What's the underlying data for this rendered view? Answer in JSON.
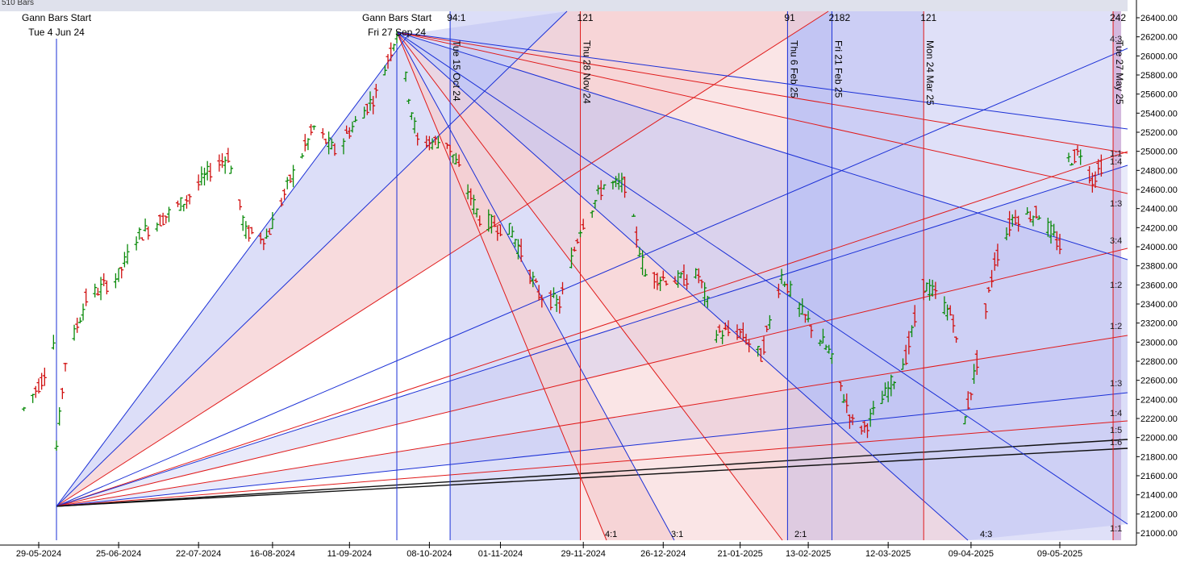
{
  "top_left_label": "510 Bars",
  "colors": {
    "background": "#ffffff",
    "up_bar": "#0a8a0a",
    "down_bar": "#d01010",
    "blue_line": "#1a2fd6",
    "red_line": "#e01a1a",
    "black_line": "#111111",
    "blue_zone": "#bfc2f2",
    "red_zone": "#f5cfd2",
    "axis_text": "#000000"
  },
  "chart_data": {
    "type": "bar",
    "subtype": "ohlc",
    "title": "",
    "xlabel": "",
    "ylabel": "",
    "ylim": [
      20900,
      26450
    ],
    "y_ticks": [
      "26400.00",
      "26200.00",
      "26000.00",
      "25800.00",
      "25600.00",
      "25400.00",
      "25200.00",
      "25000.00",
      "24800.00",
      "24600.00",
      "24400.00",
      "24200.00",
      "24000.00",
      "23800.00",
      "23600.00",
      "23400.00",
      "23200.00",
      "23000.00",
      "22800.00",
      "22600.00",
      "22400.00",
      "22200.00",
      "22000.00",
      "21800.00",
      "21600.00",
      "21400.00",
      "21200.00",
      "21000.00"
    ],
    "x_ticks": [
      "29-05-2024",
      "25-06-2024",
      "22-07-2024",
      "16-08-2024",
      "11-09-2024",
      "08-10-2024",
      "01-11-2024",
      "29-11-2024",
      "26-12-2024",
      "21-01-2025",
      "13-02-2025",
      "12-03-2025",
      "09-04-2025",
      "09-05-2025"
    ],
    "price_path": [
      [
        "2024-05-24",
        22300
      ],
      [
        "2024-05-30",
        22600
      ],
      [
        "2024-06-03",
        23000
      ],
      [
        "2024-06-04",
        21900
      ],
      [
        "2024-06-07",
        22800
      ],
      [
        "2024-06-14",
        23450
      ],
      [
        "2024-06-25",
        23700
      ],
      [
        "2024-07-01",
        24100
      ],
      [
        "2024-07-10",
        24300
      ],
      [
        "2024-07-18",
        24500
      ],
      [
        "2024-07-26",
        24800
      ],
      [
        "2024-08-01",
        24950
      ],
      [
        "2024-08-07",
        24150
      ],
      [
        "2024-08-14",
        24100
      ],
      [
        "2024-08-22",
        24700
      ],
      [
        "2024-08-30",
        25250
      ],
      [
        "2024-09-06",
        25000
      ],
      [
        "2024-09-13",
        25300
      ],
      [
        "2024-09-20",
        25600
      ],
      [
        "2024-09-27",
        26250
      ],
      [
        "2024-10-04",
        25100
      ],
      [
        "2024-10-14",
        25100
      ],
      [
        "2024-10-25",
        24300
      ],
      [
        "2024-11-05",
        24150
      ],
      [
        "2024-11-14",
        23500
      ],
      [
        "2024-11-21",
        23400
      ],
      [
        "2024-11-28",
        24200
      ],
      [
        "2024-12-06",
        24650
      ],
      [
        "2024-12-13",
        24650
      ],
      [
        "2024-12-20",
        23700
      ],
      [
        "2024-12-31",
        23650
      ],
      [
        "2025-01-07",
        23700
      ],
      [
        "2025-01-13",
        23100
      ],
      [
        "2025-01-21",
        23100
      ],
      [
        "2025-01-28",
        22850
      ],
      [
        "2025-02-04",
        23700
      ],
      [
        "2025-02-11",
        23300
      ],
      [
        "2025-02-20",
        22900
      ],
      [
        "2025-02-28",
        22150
      ],
      [
        "2025-03-04",
        22100
      ],
      [
        "2025-03-11",
        22450
      ],
      [
        "2025-03-18",
        22850
      ],
      [
        "2025-03-24",
        23600
      ],
      [
        "2025-03-28",
        23500
      ],
      [
        "2025-04-03",
        23250
      ],
      [
        "2025-04-07",
        22200
      ],
      [
        "2025-04-11",
        22800
      ],
      [
        "2025-04-17",
        23850
      ],
      [
        "2025-04-23",
        24300
      ],
      [
        "2025-05-02",
        24350
      ],
      [
        "2025-05-09",
        24000
      ],
      [
        "2025-05-12",
        24900
      ],
      [
        "2025-05-16",
        25000
      ],
      [
        "2025-05-20",
        24700
      ],
      [
        "2025-05-23",
        24850
      ]
    ],
    "vertical_markers": [
      {
        "date": "2024-06-04",
        "label": "Tue 4 Jun 24",
        "title": "Gann Bars Start",
        "color": "blue"
      },
      {
        "date": "2024-09-27",
        "label": "Fri 27 Sep 24",
        "title": "Gann Bars Start",
        "color": "blue"
      },
      {
        "date": "2024-10-15",
        "label": "Tue 15 Oct 24",
        "count": "94:1",
        "color": "blue"
      },
      {
        "date": "2024-11-28",
        "label": "Thu 28 Nov 24",
        "count": "121",
        "color": "red"
      },
      {
        "date": "2025-02-06",
        "label": "Thu 6 Feb 25",
        "count": "91",
        "color": "blue"
      },
      {
        "date": "2025-02-21",
        "label": "Fri 21 Feb 25",
        "count": "2182",
        "color": "blue"
      },
      {
        "date": "2025-03-24",
        "label": "Mon 24 Mar 25",
        "count": "121",
        "color": "red"
      },
      {
        "date": "2025-05-27",
        "label": "Tue 27 May 25",
        "count": "242",
        "color": "red"
      }
    ],
    "fan_origin_low": {
      "date": "2024-06-04",
      "price": 21280
    },
    "fan_origin_high": {
      "date": "2024-09-27",
      "price": 26250
    },
    "bottom_angle_labels": [
      "4:1",
      "3:1",
      "2:1",
      "4:3"
    ],
    "right_angle_labels": [
      "4:3",
      "1:1",
      "1:4",
      "1:3",
      "3:4",
      "1:2",
      "1:2",
      "1:3",
      "1:4",
      "1:5",
      "1:6",
      "1:1"
    ]
  }
}
